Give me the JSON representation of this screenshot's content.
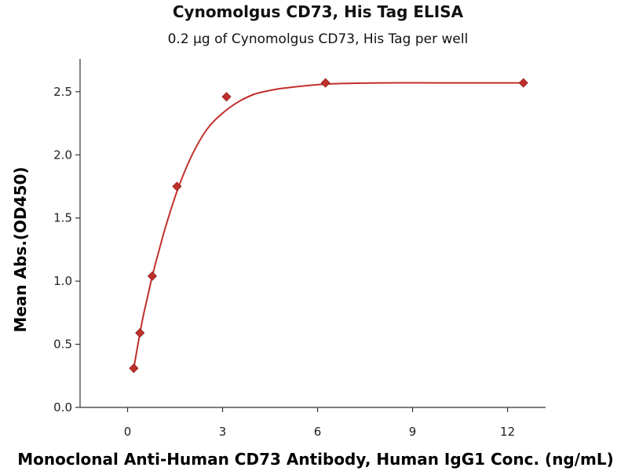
{
  "chart_data": {
    "type": "scatter",
    "title": "Cynomolgus CD73, His Tag ELISA",
    "subtitle": "0.2 μg of Cynomolgus CD73, His Tag per well",
    "xlabel": "Monoclonal Anti-Human CD73 Antibody, Human IgG1 Conc. (ng/mL)",
    "ylabel": "Mean Abs.(OD450)",
    "xlim": [
      -1.5,
      13.2
    ],
    "ylim": [
      0,
      2.76
    ],
    "xticks": [
      0,
      3,
      6,
      9,
      12
    ],
    "xtick_labels": [
      "0",
      "3",
      "6",
      "9",
      "12"
    ],
    "yticks": [
      0.0,
      0.5,
      1.0,
      1.5,
      2.0,
      2.5
    ],
    "ytick_labels": [
      "0.0",
      "0.5",
      "1.0",
      "1.5",
      "2.0",
      "2.5"
    ],
    "grid": false,
    "series": [
      {
        "marker": "diamond",
        "color": "#c0302b",
        "x": [
          0.195,
          0.39,
          0.78,
          1.56,
          3.125,
          6.25,
          12.5
        ],
        "y": [
          0.31,
          0.59,
          1.04,
          1.75,
          2.46,
          2.57,
          2.57
        ]
      }
    ],
    "fit_curve": {
      "color": "#c0302b",
      "x": [
        0.195,
        0.3,
        0.4,
        0.5,
        0.6,
        0.78,
        1.0,
        1.2,
        1.56,
        2.0,
        2.5,
        3.0,
        3.5,
        4.0,
        4.5,
        5.0,
        6.25,
        8.0,
        10.0,
        12.5
      ],
      "y": [
        0.31,
        0.46,
        0.6,
        0.73,
        0.84,
        1.04,
        1.25,
        1.43,
        1.71,
        1.98,
        2.2,
        2.33,
        2.42,
        2.48,
        2.51,
        2.53,
        2.56,
        2.57,
        2.57,
        2.57
      ]
    }
  }
}
